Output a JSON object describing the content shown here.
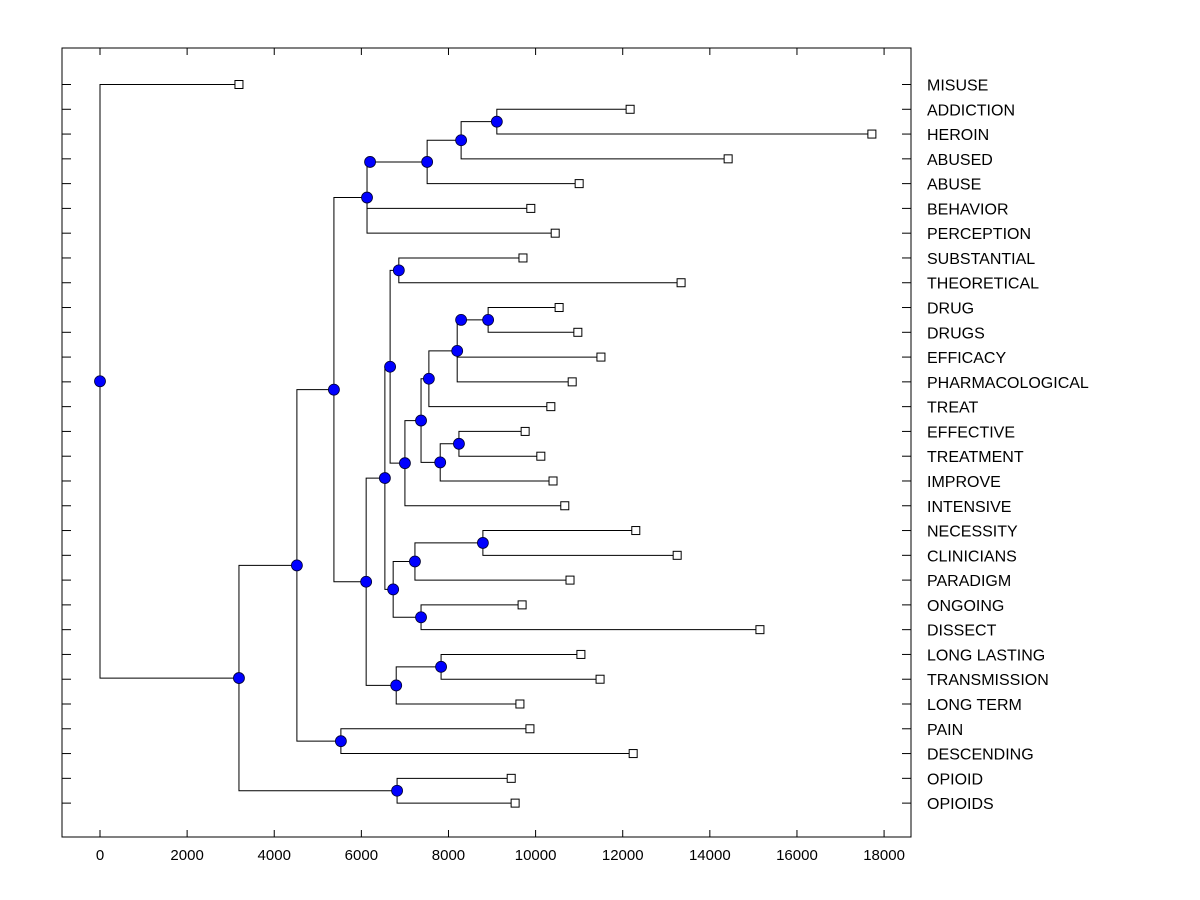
{
  "chart_data": {
    "type": "dendrogram",
    "title": "",
    "xlabel": "",
    "ylabel": "",
    "xlim": [
      -850,
      17800
    ],
    "xticks": [
      0,
      2000,
      4000,
      6000,
      8000,
      10000,
      12000,
      14000,
      16000,
      18000
    ],
    "xtick_labels": [
      "0",
      "2000",
      "4000",
      "6000",
      "8000",
      "10000",
      "12000",
      "14000",
      "16000",
      "18000"
    ],
    "colors": {
      "node_fill": "#0000ff",
      "leaf_fill": "#ffffff",
      "line": "#000000"
    },
    "leaves": [
      {
        "label": "MISUSE",
        "value": 3190
      },
      {
        "label": "ADDICTION",
        "value": 12170
      },
      {
        "label": "HEROIN",
        "value": 17720
      },
      {
        "label": "ABUSED",
        "value": 14420
      },
      {
        "label": "ABUSE",
        "value": 11000
      },
      {
        "label": "BEHAVIOR",
        "value": 9890
      },
      {
        "label": "PERCEPTION",
        "value": 10450
      },
      {
        "label": "SUBSTANTIAL",
        "value": 9710
      },
      {
        "label": "THEORETICAL",
        "value": 13340
      },
      {
        "label": "DRUG",
        "value": 10540
      },
      {
        "label": "DRUGS",
        "value": 10970
      },
      {
        "label": "EFFICACY",
        "value": 11500
      },
      {
        "label": "PHARMACOLOGICAL",
        "value": 10840
      },
      {
        "label": "TREAT",
        "value": 10350
      },
      {
        "label": "EFFECTIVE",
        "value": 9760
      },
      {
        "label": "TREATMENT",
        "value": 10120
      },
      {
        "label": "IMPROVE",
        "value": 10400
      },
      {
        "label": "INTENSIVE",
        "value": 10670
      },
      {
        "label": "NECESSITY",
        "value": 12300
      },
      {
        "label": "CLINICIANS",
        "value": 13250
      },
      {
        "label": "PARADIGM",
        "value": 10790
      },
      {
        "label": "ONGOING",
        "value": 9690
      },
      {
        "label": "DISSECT",
        "value": 15150
      },
      {
        "label": "LONG LASTING",
        "value": 11040
      },
      {
        "label": "TRANSMISSION",
        "value": 11480
      },
      {
        "label": "LONG TERM",
        "value": 9640
      },
      {
        "label": "PAIN",
        "value": 9870
      },
      {
        "label": "DESCENDING",
        "value": 12240
      },
      {
        "label": "OPIOID",
        "value": 9440
      },
      {
        "label": "OPIOIDS",
        "value": 9530
      }
    ],
    "tree": {
      "value": 0,
      "children": [
        {
          "leaf": 0
        },
        {
          "value": 3190,
          "children": [
            {
              "value": 4520,
              "children": [
                {
                  "value": 5370,
                  "children": [
                    {
                      "value": 6130,
                      "children": [
                        {
                          "value": 6200,
                          "children": [
                            {
                              "value": 7510,
                              "children": [
                                {
                                  "value": 8290,
                                  "children": [
                                    {
                                      "value": 9110,
                                      "children": [
                                        {
                                          "leaf": 1
                                        },
                                        {
                                          "leaf": 2
                                        }
                                      ]
                                    },
                                    {
                                      "leaf": 3
                                    }
                                  ]
                                },
                                {
                                  "leaf": 4
                                }
                              ]
                            }
                          ]
                        },
                        {
                          "leaf": 5
                        },
                        {
                          "leaf": 6
                        }
                      ]
                    },
                    {
                      "value": 6110,
                      "children": [
                        {
                          "value": 6540,
                          "children": [
                            {
                              "value": 6660,
                              "children": [
                                {
                                  "value": 6860,
                                  "children": [
                                    {
                                      "leaf": 7
                                    },
                                    {
                                      "leaf": 8
                                    }
                                  ]
                                },
                                {
                                  "value": 7000,
                                  "children": [
                                    {
                                      "value": 7370,
                                      "children": [
                                        {
                                          "value": 7550,
                                          "children": [
                                            {
                                              "value": 8200,
                                              "children": [
                                                {
                                                  "value": 8290,
                                                  "children": [
                                                    {
                                                      "value": 8910,
                                                      "children": [
                                                        {
                                                          "leaf": 9
                                                        },
                                                        {
                                                          "leaf": 10
                                                        }
                                                      ]
                                                    }
                                                  ]
                                                },
                                                {
                                                  "leaf": 11
                                                },
                                                {
                                                  "leaf": 12
                                                }
                                              ]
                                            },
                                            {
                                              "leaf": 13
                                            }
                                          ]
                                        },
                                        {
                                          "value": 7810,
                                          "children": [
                                            {
                                              "value": 8240,
                                              "children": [
                                                {
                                                  "leaf": 14
                                                },
                                                {
                                                  "leaf": 15
                                                }
                                              ]
                                            },
                                            {
                                              "leaf": 16
                                            }
                                          ]
                                        }
                                      ]
                                    },
                                    {
                                      "leaf": 17
                                    }
                                  ]
                                }
                              ]
                            },
                            {
                              "value": 6730,
                              "children": [
                                {
                                  "value": 7230,
                                  "children": [
                                    {
                                      "value": 8790,
                                      "children": [
                                        {
                                          "leaf": 18
                                        },
                                        {
                                          "leaf": 19
                                        }
                                      ]
                                    },
                                    {
                                      "leaf": 20
                                    }
                                  ]
                                },
                                {
                                  "value": 7370,
                                  "children": [
                                    {
                                      "leaf": 21
                                    },
                                    {
                                      "leaf": 22
                                    }
                                  ]
                                }
                              ]
                            }
                          ]
                        },
                        {
                          "value": 6800,
                          "children": [
                            {
                              "value": 7830,
                              "children": [
                                {
                                  "leaf": 23
                                },
                                {
                                  "leaf": 24
                                }
                              ]
                            },
                            {
                              "leaf": 25
                            }
                          ]
                        }
                      ]
                    }
                  ]
                },
                {
                  "value": 5530,
                  "children": [
                    {
                      "leaf": 26
                    },
                    {
                      "leaf": 27
                    }
                  ]
                }
              ]
            },
            {
              "value": 6820,
              "children": [
                {
                  "leaf": 28
                },
                {
                  "leaf": 29
                }
              ]
            }
          ]
        }
      ]
    }
  }
}
